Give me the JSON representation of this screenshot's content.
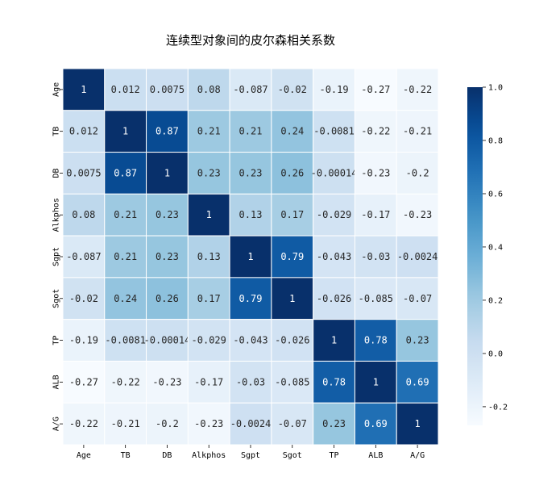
{
  "chart_data": {
    "type": "heatmap",
    "title": "连续型对象间的皮尔森相关系数",
    "x_labels": [
      "Age",
      "TB",
      "DB",
      "Alkphos",
      "Sgpt",
      "Sgot",
      "TP",
      "ALB",
      "A/G"
    ],
    "y_labels": [
      "Age",
      "TB",
      "DB",
      "Alkphos",
      "Sgpt",
      "Sgot",
      "TP",
      "ALB",
      "A/G"
    ],
    "matrix": [
      [
        "1",
        "0.012",
        "0.0075",
        "0.08",
        "-0.087",
        "-0.02",
        "-0.19",
        "-0.27",
        "-0.22"
      ],
      [
        "0.012",
        "1",
        "0.87",
        "0.21",
        "0.21",
        "0.24",
        "-0.0081",
        "-0.22",
        "-0.21"
      ],
      [
        "0.0075",
        "0.87",
        "1",
        "0.23",
        "0.23",
        "0.26",
        "-0.00014",
        "-0.23",
        "-0.2"
      ],
      [
        "0.08",
        "0.21",
        "0.23",
        "1",
        "0.13",
        "0.17",
        "-0.029",
        "-0.17",
        "-0.23"
      ],
      [
        "-0.087",
        "0.21",
        "0.23",
        "0.13",
        "1",
        "0.79",
        "-0.043",
        "-0.03",
        "-0.0024"
      ],
      [
        "-0.02",
        "0.24",
        "0.26",
        "0.17",
        "0.79",
        "1",
        "-0.026",
        "-0.085",
        "-0.07"
      ],
      [
        "-0.19",
        "-0.0081",
        "-0.00014",
        "-0.029",
        "-0.043",
        "-0.026",
        "1",
        "0.78",
        "0.23"
      ],
      [
        "-0.27",
        "-0.22",
        "-0.23",
        "-0.17",
        "-0.03",
        "-0.085",
        "0.78",
        "1",
        "0.69"
      ],
      [
        "-0.22",
        "-0.21",
        "-0.2",
        "-0.23",
        "-0.0024",
        "-0.07",
        "0.23",
        "0.69",
        "1"
      ]
    ],
    "colorbar": {
      "min": -0.27,
      "max": 1.0,
      "ticks": [
        "1.0",
        "0.8",
        "0.6",
        "0.4",
        "0.2",
        "0.0",
        "-0.2"
      ],
      "colormap": "Blues"
    },
    "cell_border_color": "#ffffff"
  }
}
